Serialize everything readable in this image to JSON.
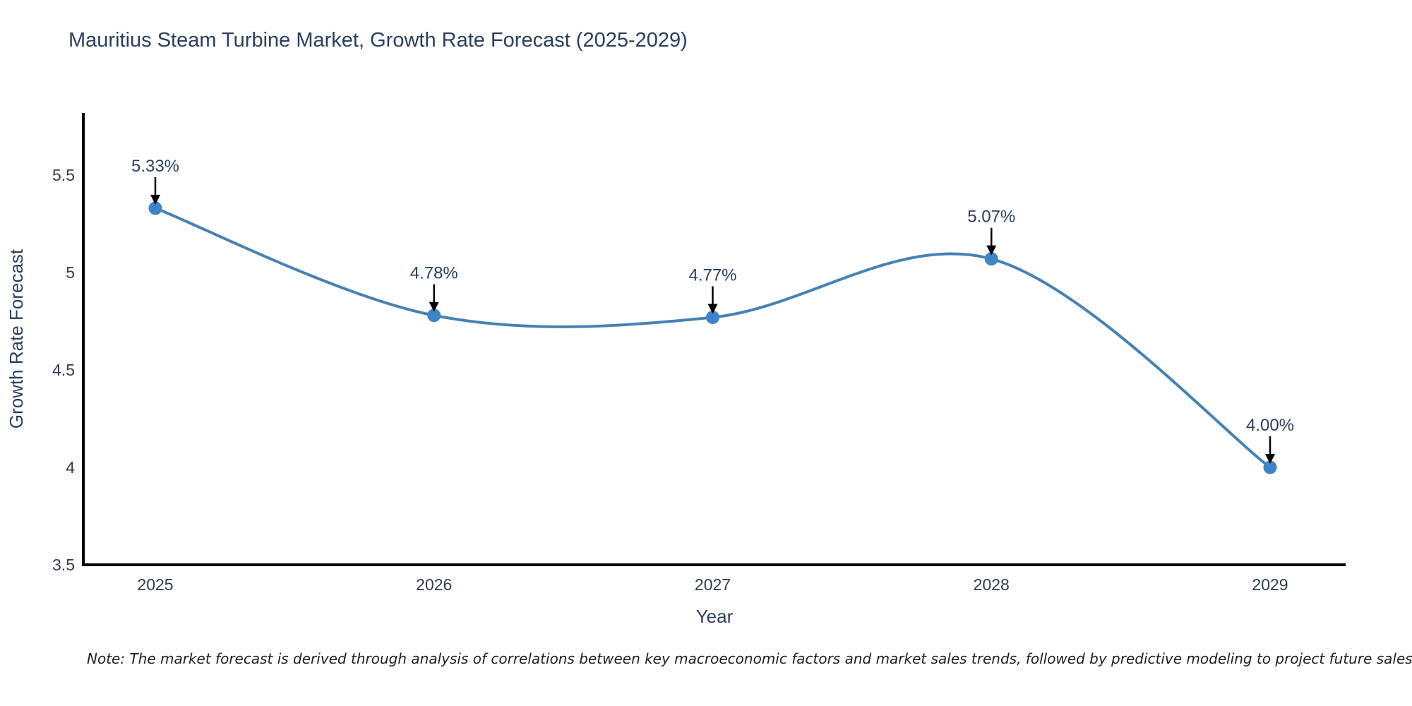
{
  "chart_data": {
    "type": "line",
    "title": "Mauritius Steam Turbine Market, Growth Rate Forecast (2025-2029)",
    "x": [
      2025,
      2026,
      2027,
      2028,
      2029
    ],
    "xtick_labels": [
      "2025",
      "2026",
      "2027",
      "2028",
      "2029"
    ],
    "values": [
      5.33,
      4.78,
      4.77,
      5.07,
      4.0
    ],
    "point_labels": [
      "5.33%",
      "4.78%",
      "4.77%",
      "5.07%",
      "4.00%"
    ],
    "xlabel": "Year",
    "ylabel": "Growth Rate Forecast",
    "yticks": [
      3.5,
      4,
      4.5,
      5,
      5.5
    ],
    "ytick_labels": [
      "3.5",
      "4",
      "4.5",
      "5",
      "5.5"
    ],
    "ylim": [
      3.5,
      5.82
    ],
    "grid": false,
    "legend": "none",
    "line_shape": "spline",
    "note": "Note: The market forecast is derived through analysis of correlations between key macroeconomic factors and market sales trends, followed by predictive modeling to project future sales",
    "colors": {
      "line": "#4682b4",
      "marker": "#3d84c8",
      "annotation_arrow": "#000000",
      "axis_line": "#000000",
      "title_text": "#2a3f5f",
      "tick_text": "#2f3b52",
      "note_text": "#1f1f1f"
    }
  }
}
